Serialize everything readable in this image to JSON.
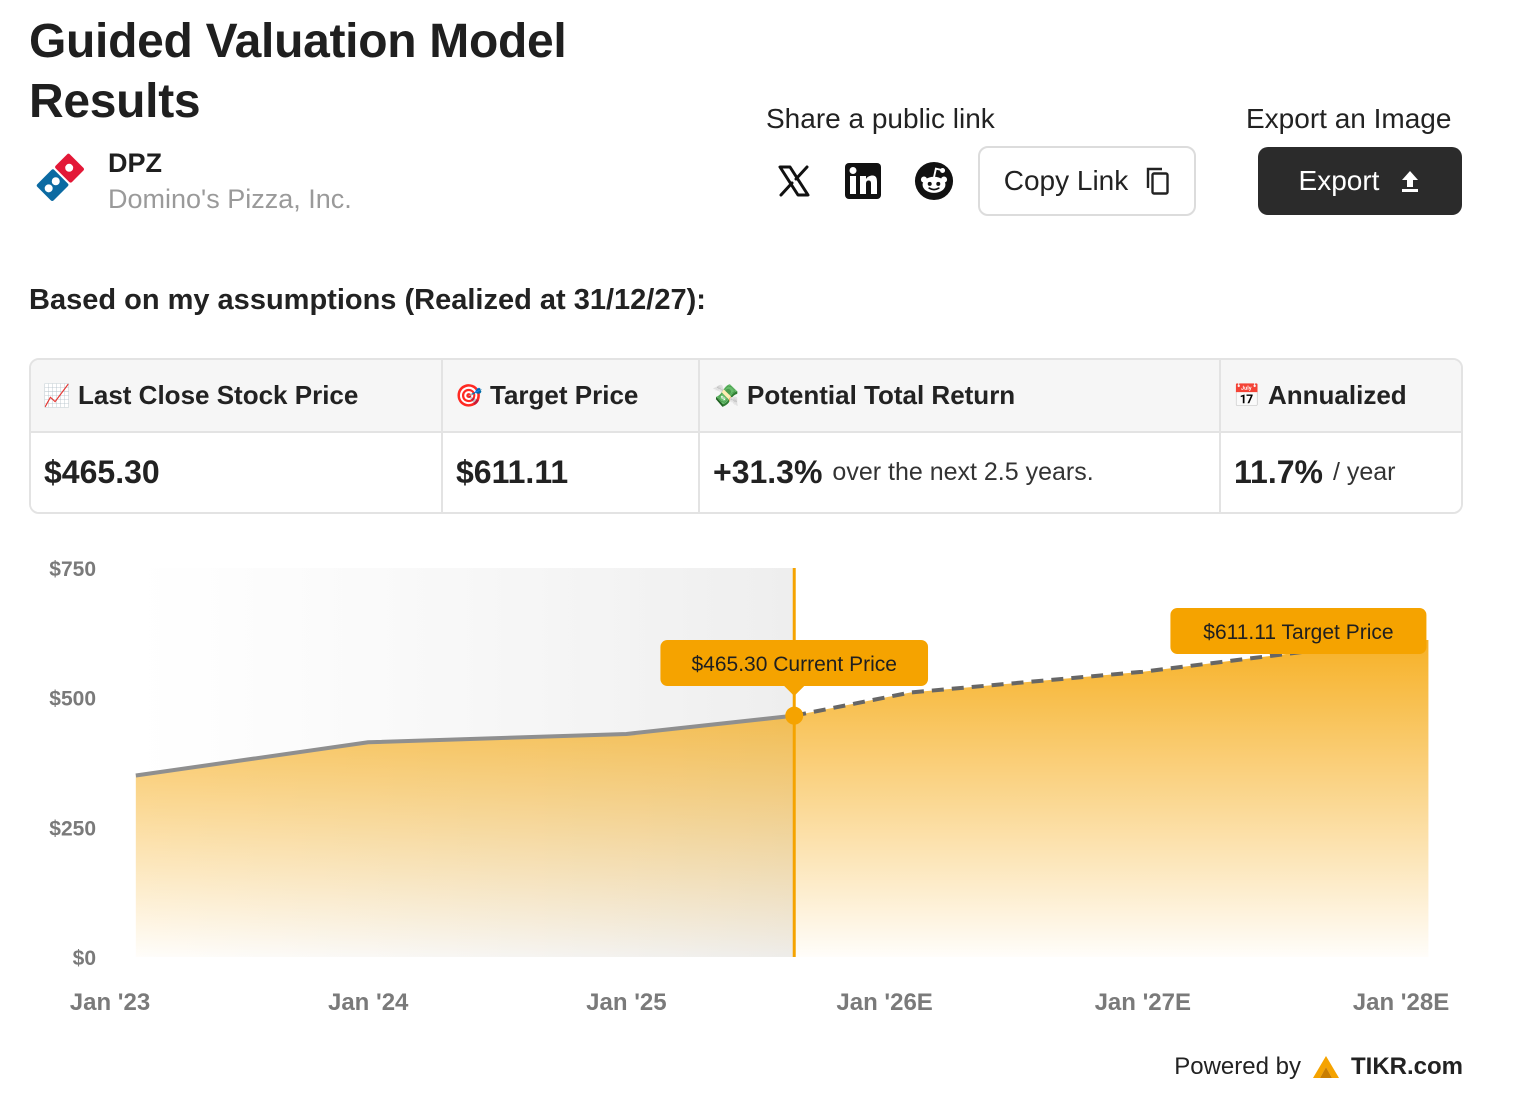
{
  "header": {
    "title": "Guided Valuation Model Results",
    "ticker": "DPZ",
    "company_name": "Domino's Pizza, Inc."
  },
  "share": {
    "label": "Share a public link",
    "icons": [
      "x-twitter-icon",
      "linkedin-icon",
      "reddit-icon"
    ],
    "copy_label": "Copy Link"
  },
  "export": {
    "label": "Export an Image",
    "button_label": "Export"
  },
  "assumptions_text": "Based on my assumptions (Realized at 31/12/27):",
  "metrics": [
    {
      "emoji": "📈",
      "label": "Last Close Stock Price",
      "value": "$465.30",
      "suffix": ""
    },
    {
      "emoji": "🎯",
      "label": "Target Price",
      "value": "$611.11",
      "suffix": ""
    },
    {
      "emoji": "💸",
      "label": "Potential Total Return",
      "value": "+31.3%",
      "suffix": "over the next 2.5 years."
    },
    {
      "emoji": "📅",
      "label": "Annualized",
      "value": "11.7%",
      "suffix": "/ year"
    }
  ],
  "chart_data": {
    "type": "area",
    "x_ticks": [
      "Jan '23",
      "Jan '24",
      "Jan '25",
      "Jan '26E",
      "Jan '27E",
      "Jan '28E"
    ],
    "y_ticks": [
      "$750",
      "$500",
      "$250",
      "$0"
    ],
    "ylim": [
      0,
      750
    ],
    "historical": [
      {
        "x": 2023.1,
        "y": 350
      },
      {
        "x": 2024.0,
        "y": 414
      },
      {
        "x": 2025.0,
        "y": 430
      },
      {
        "x": 2025.65,
        "y": 465.3
      }
    ],
    "projected": [
      {
        "x": 2025.65,
        "y": 465.3
      },
      {
        "x": 2026.1,
        "y": 510
      },
      {
        "x": 2027.0,
        "y": 550
      },
      {
        "x": 2027.99,
        "y": 611.11
      }
    ],
    "current_label": "$465.30 Current Price",
    "target_label": "$611.11 Target Price",
    "colors": {
      "accent": "#f5a300",
      "history_line": "#8f8f8f",
      "projection_line": "#666666"
    }
  },
  "footer": {
    "powered_by": "Powered by",
    "brand": "TIKR.com"
  }
}
